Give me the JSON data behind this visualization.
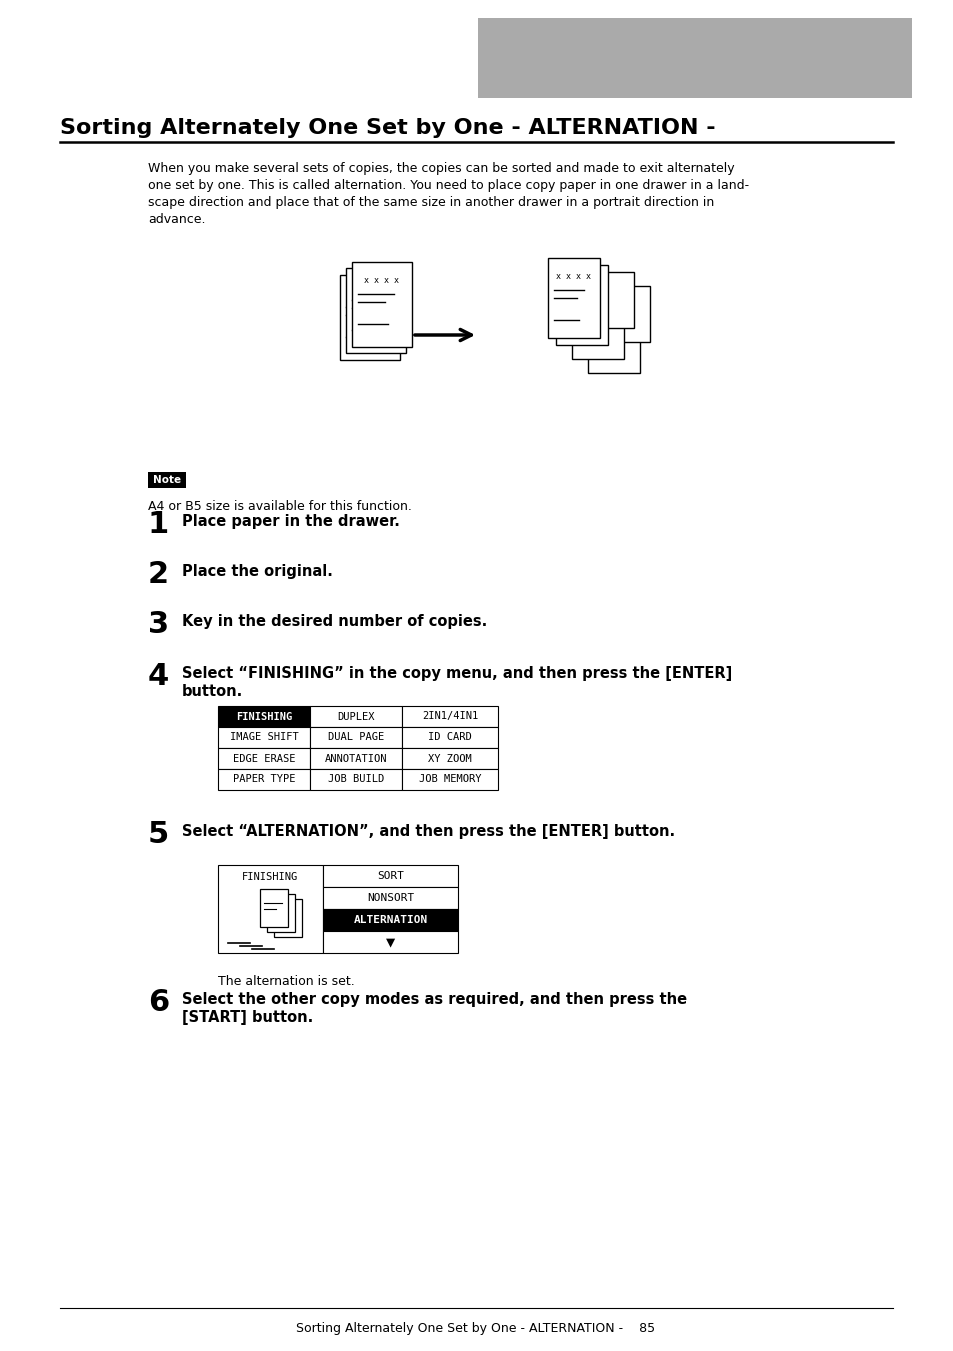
{
  "title": "Sorting Alternately One Set by One - ALTERNATION -",
  "bg_color": "#ffffff",
  "gray_box_color": "#aaaaaa",
  "body_lines": [
    "When you make several sets of copies, the copies can be sorted and made to exit alternately",
    "one set by one. This is called alternation. You need to place copy paper in one drawer in a land-",
    "scape direction and place that of the same size in another drawer in a portrait direction in",
    "advance."
  ],
  "note_label": "Note",
  "note_text": "A4 or B5 size is available for this function.",
  "step1_text": "Place paper in the drawer.",
  "step2_text": "Place the original.",
  "step3_text": "Key in the desired number of copies.",
  "step4_line1": "Select “FINISHING” in the copy menu, and then press the [ENTER]",
  "step4_line2": "button.",
  "step5_text": "Select “ALTERNATION”, and then press the [ENTER] button.",
  "step6_line1": "Select the other copy modes as required, and then press the",
  "step6_line2": "[START] button.",
  "table1": [
    [
      "FINISHING",
      "DUPLEX",
      "2IN1/4IN1"
    ],
    [
      "IMAGE SHIFT",
      "DUAL PAGE",
      "ID CARD"
    ],
    [
      "EDGE ERASE",
      "ANNOTATION",
      "XY ZOOM"
    ],
    [
      "PAPER TYPE",
      "JOB BUILD",
      "JOB MEMORY"
    ]
  ],
  "table2_right": [
    "SORT",
    "NONSORT",
    "ALTERNATION",
    "▼"
  ],
  "alternation_set_text": "The alternation is set.",
  "footer_line": "Sorting Alternately One Set by One - ALTERNATION -    85"
}
